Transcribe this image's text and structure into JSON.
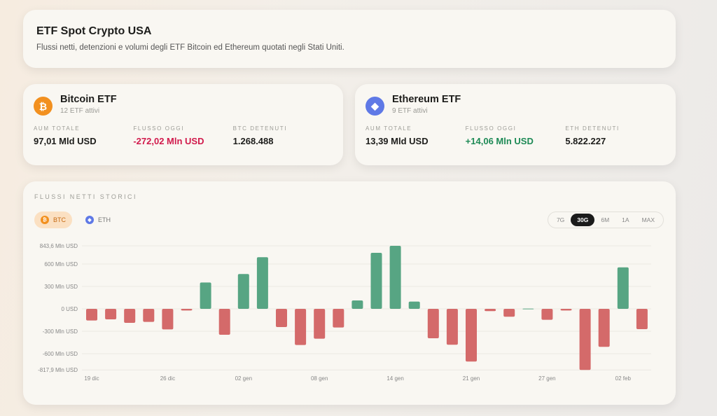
{
  "header": {
    "title": "ETF Spot Crypto USA",
    "subtitle": "Flussi netti, detenzioni e volumi degli ETF Bitcoin ed Ethereum quotati negli Stati Uniti."
  },
  "btc": {
    "icon": "bitcoin-icon",
    "symbol": "₿",
    "name": "Bitcoin ETF",
    "count": "12 ETF attivi",
    "aum_label": "AUM TOTALE",
    "aum": "97,01 Mld USD",
    "flow_label": "FLUSSO OGGI",
    "flow": "-272,02 Mln USD",
    "held_label": "BTC DETENUTI",
    "held": "1.268.488"
  },
  "eth": {
    "icon": "ethereum-icon",
    "symbol": "◆",
    "name": "Ethereum ETF",
    "count": "9 ETF attivi",
    "aum_label": "AUM TOTALE",
    "aum": "13,39 Mld USD",
    "flow_label": "FLUSSO OGGI",
    "flow": "+14,06 Mln USD",
    "held_label": "ETH DETENUTI",
    "held": "5.822.227"
  },
  "chart_section": {
    "title": "FLUSSI NETTI STORICI",
    "assets": [
      "BTC",
      "ETH"
    ],
    "active_asset": "BTC",
    "ranges": [
      "7G",
      "30G",
      "6M",
      "1A",
      "MAX"
    ],
    "active_range": "30G"
  },
  "colors": {
    "positive": "#57a583",
    "negative": "#d46a6a",
    "btc": "#f2901f",
    "eth": "#5f79e6"
  },
  "chart_data": {
    "type": "bar",
    "title": "Flussi netti storici (BTC, 30G)",
    "ylabel": "Mln USD",
    "ylim": [
      -817.9,
      843.6
    ],
    "ytick_labels": [
      {
        "v": 843.6,
        "t": "843,6 Mln USD"
      },
      {
        "v": 600,
        "t": "600 Mln USD"
      },
      {
        "v": 300,
        "t": "300 Mln USD"
      },
      {
        "v": 0,
        "t": "0 USD"
      },
      {
        "v": -300,
        "t": "-300 Mln USD"
      },
      {
        "v": -600,
        "t": "-600 Mln USD"
      },
      {
        "v": -817.9,
        "t": "-817,9 Mln USD"
      }
    ],
    "xtick_labels": [
      {
        "i": 0,
        "t": "19 dic"
      },
      {
        "i": 4,
        "t": "26 dic"
      },
      {
        "i": 8,
        "t": "02 gen"
      },
      {
        "i": 12,
        "t": "08 gen"
      },
      {
        "i": 16,
        "t": "14 gen"
      },
      {
        "i": 20,
        "t": "21 gen"
      },
      {
        "i": 24,
        "t": "27 gen"
      },
      {
        "i": 28,
        "t": "02 feb"
      }
    ],
    "values": [
      -156,
      -141,
      -188,
      -175,
      -275,
      -22,
      353,
      -347,
      466,
      691,
      -244,
      -484,
      -400,
      -250,
      113,
      750,
      843.6,
      97,
      -394,
      -481,
      -706,
      -31,
      -106,
      4,
      -147,
      -22,
      -817.9,
      -509,
      556,
      -272.02
    ]
  }
}
